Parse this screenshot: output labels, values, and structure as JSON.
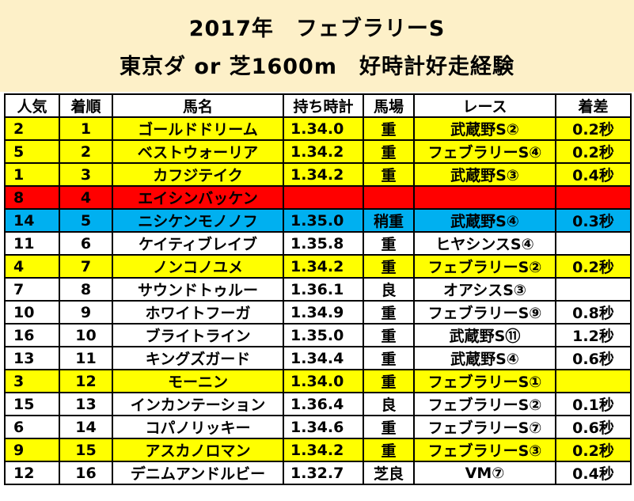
{
  "title_line1": "2017年　フェブラリーS",
  "title_line2": "東京ダ or 芝1600m　好時計好走経験",
  "colors": {
    "header_bg": "#fdf0c8",
    "yellow": "#ffff00",
    "red": "#ff0000",
    "blue": "#00b0f0",
    "white": "#ffffff"
  },
  "columns": [
    "人気",
    "着順",
    "馬名",
    "持ち時計",
    "馬場",
    "レース",
    "着差"
  ],
  "rows": [
    {
      "pop": "2",
      "rank": "1",
      "horse": "ゴールドドリーム",
      "time": "1.34.0",
      "track": "重",
      "race": "武蔵野S②",
      "margin": "0.2秒",
      "color": "yellow"
    },
    {
      "pop": "5",
      "rank": "2",
      "horse": "ベストウォーリア",
      "time": "1.34.2",
      "track": "重",
      "race": "フェブラリーS④",
      "margin": "0.2秒",
      "color": "yellow"
    },
    {
      "pop": "1",
      "rank": "3",
      "horse": "カフジテイク",
      "time": "1.34.2",
      "track": "重",
      "race": "武蔵野S③",
      "margin": "0.4秒",
      "color": "yellow"
    },
    {
      "pop": "8",
      "rank": "4",
      "horse": "エイシンバッケン",
      "time": "",
      "track": "",
      "race": "",
      "margin": "",
      "color": "red"
    },
    {
      "pop": "14",
      "rank": "5",
      "horse": "ニシケンモノノフ",
      "time": "1.35.0",
      "track": "稍重",
      "race": "武蔵野S④",
      "margin": "0.3秒",
      "color": "blue"
    },
    {
      "pop": "11",
      "rank": "6",
      "horse": "ケイティブレイブ",
      "time": "1.35.8",
      "track": "重",
      "race": "ヒヤシンスS④",
      "margin": "",
      "color": "white"
    },
    {
      "pop": "4",
      "rank": "7",
      "horse": "ノンコノユメ",
      "time": "1.34.2",
      "track": "重",
      "race": "フェブラリーS②",
      "margin": "0.2秒",
      "color": "yellow"
    },
    {
      "pop": "7",
      "rank": "8",
      "horse": "サウンドトゥルー",
      "time": "1.36.1",
      "track": "良",
      "race": "オアシスS③",
      "margin": "",
      "color": "white"
    },
    {
      "pop": "10",
      "rank": "9",
      "horse": "ホワイトフーガ",
      "time": "1.34.9",
      "track": "重",
      "race": "フェブラリーS⑨",
      "margin": "0.8秒",
      "color": "white"
    },
    {
      "pop": "16",
      "rank": "10",
      "horse": "ブライトライン",
      "time": "1.35.0",
      "track": "重",
      "race": "武蔵野S⑪",
      "margin": "1.2秒",
      "color": "white"
    },
    {
      "pop": "13",
      "rank": "11",
      "horse": "キングズガード",
      "time": "1.34.4",
      "track": "重",
      "race": "武蔵野S④",
      "margin": "0.6秒",
      "color": "white"
    },
    {
      "pop": "3",
      "rank": "12",
      "horse": "モーニン",
      "time": "1.34.0",
      "track": "重",
      "race": "フェブラリーS①",
      "margin": "",
      "color": "yellow"
    },
    {
      "pop": "15",
      "rank": "13",
      "horse": "インカンテーション",
      "time": "1.36.4",
      "track": "良",
      "race": "フェブラリーS②",
      "margin": "0.1秒",
      "color": "white"
    },
    {
      "pop": "6",
      "rank": "14",
      "horse": "コパノリッキー",
      "time": "1.34.6",
      "track": "重",
      "race": "フェブラリーS⑦",
      "margin": "0.6秒",
      "color": "white"
    },
    {
      "pop": "9",
      "rank": "15",
      "horse": "アスカノロマン",
      "time": "1.34.2",
      "track": "重",
      "race": "フェブラリーS③",
      "margin": "0.2秒",
      "color": "yellow"
    },
    {
      "pop": "12",
      "rank": "16",
      "horse": "デニムアンドルビー",
      "time": "1.32.7",
      "track": "芝良",
      "race": "VM⑦",
      "margin": "0.4秒",
      "color": "white"
    }
  ]
}
